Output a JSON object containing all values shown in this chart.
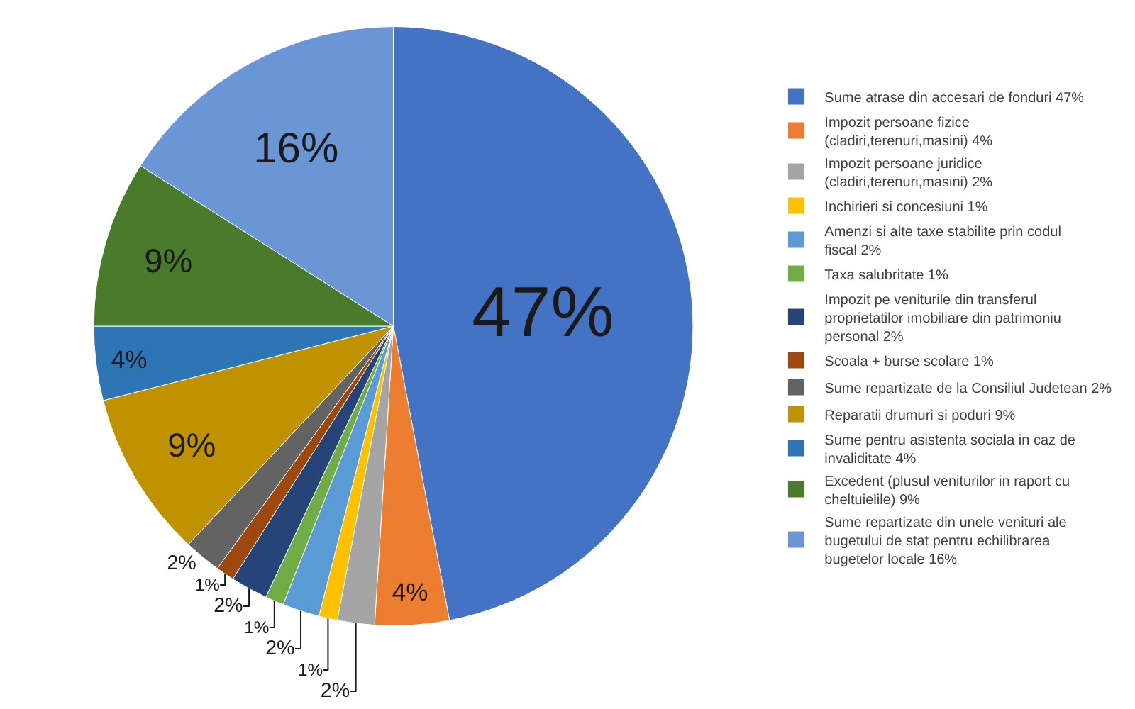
{
  "chart_data": {
    "type": "pie",
    "categories": [
      "Sume atrase din accesari de fonduri 47%",
      "Impozit persoane fizice (cladiri,terenuri,masini) 4%",
      "Impozit persoane juridice (cladiri,terenuri,masini) 2%",
      "Inchirieri si concesiuni 1%",
      "Amenzi si alte taxe stabilite prin codul fiscal 2%",
      "Taxa salubritate 1%",
      "Impozit pe veniturile din transferul proprietatilor imobiliare din patrimoniu personal 2%",
      "Scoala + burse scolare 1%",
      "Sume repartizate de la Consiliul Judetean 2%",
      "Reparatii drumuri si poduri 9%",
      "Sume pentru asistenta sociala in caz de invaliditate 4%",
      "Excedent (plusul veniturilor in raport cu cheltuielile) 9%",
      "Sume repartizate din unele venituri ale bugetului de stat pentru echilibrarea bugetelor locale 16%"
    ],
    "values": [
      47,
      4,
      2,
      1,
      2,
      1,
      2,
      1,
      2,
      9,
      4,
      9,
      16
    ],
    "value_labels": [
      "47%",
      "4%",
      "2%",
      "1%",
      "2%",
      "1%",
      "2%",
      "1%",
      "2%",
      "9%",
      "4%",
      "9%",
      "16%"
    ],
    "colors": [
      "#4472c4",
      "#ed7d31",
      "#a5a5a5",
      "#ffc000",
      "#5b9bd5",
      "#70ad47",
      "#264478",
      "#9e480e",
      "#636363",
      "#c09100",
      "#2e75b6",
      "#4a7a2c",
      "#6b96d6"
    ],
    "legend": "right"
  }
}
